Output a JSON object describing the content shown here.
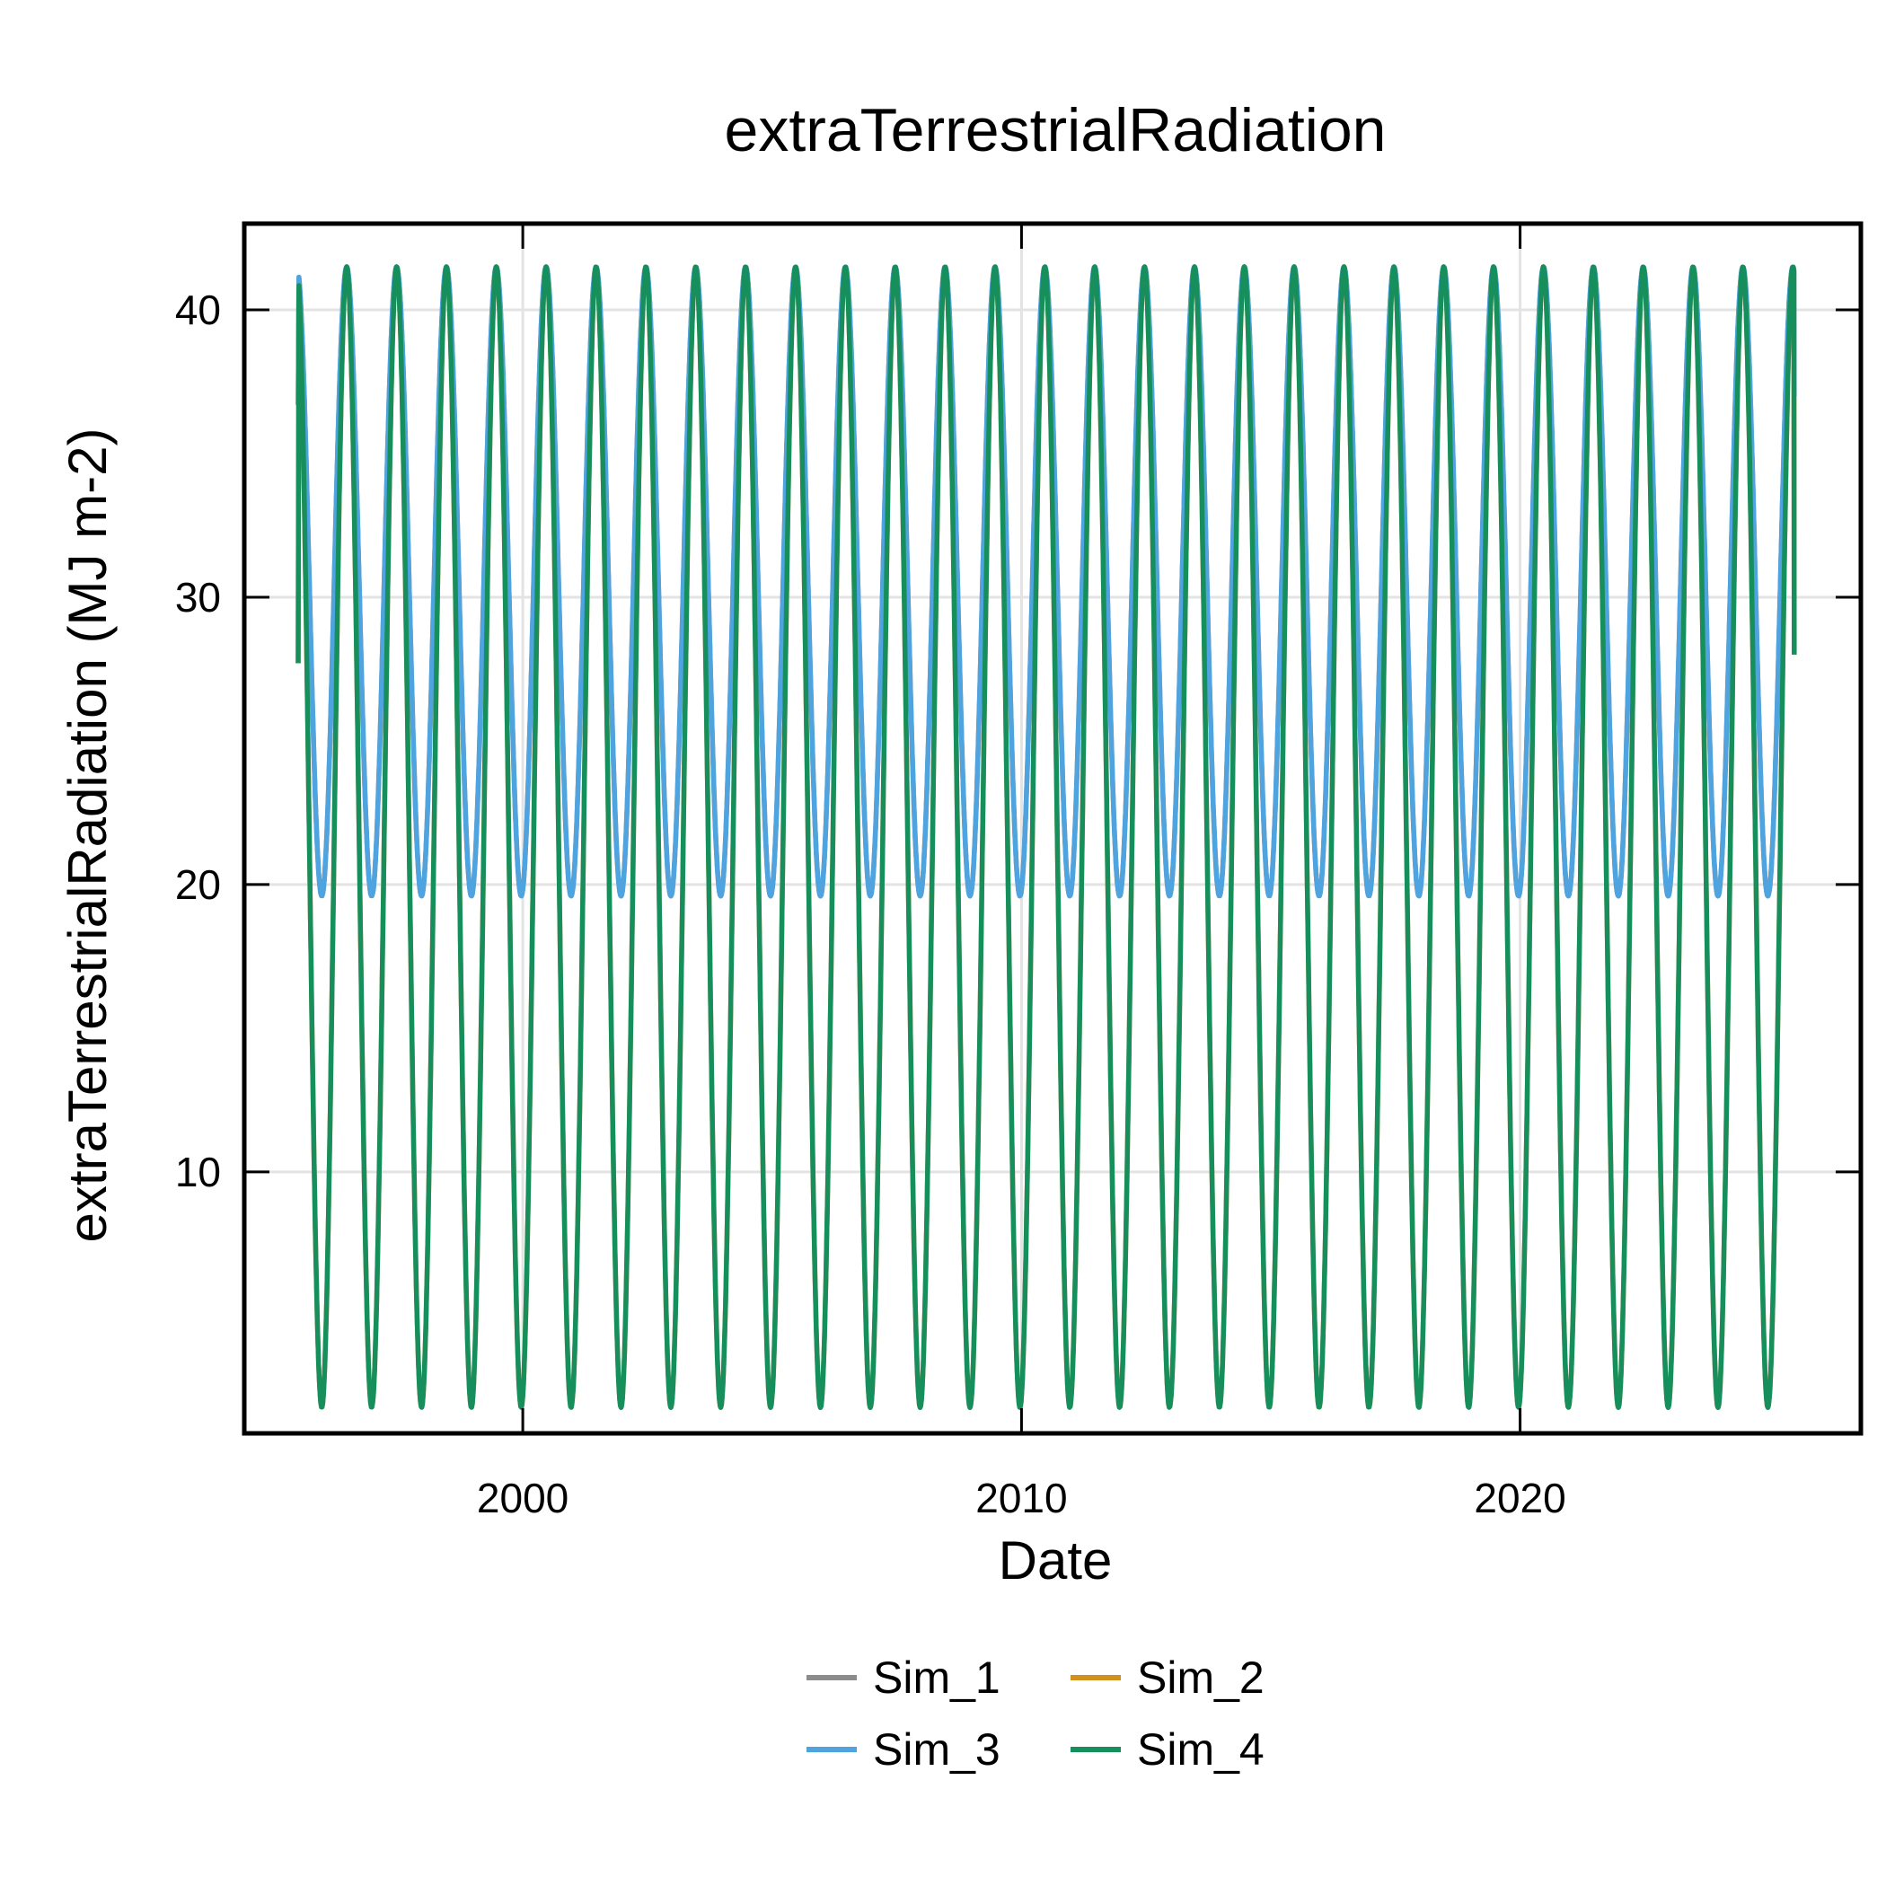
{
  "chart_data": {
    "type": "line",
    "title": "extraTerrestrialRadiation",
    "xlabel": "Date",
    "ylabel": "extraTerrestrialRadiation (MJ m-2)",
    "x_range": [
      "1994-06-01",
      "2026-11-01"
    ],
    "ylim": [
      0.9,
      43.0
    ],
    "x_ticks": [
      "2000",
      "2010",
      "2020"
    ],
    "y_ticks": [
      "10",
      "20",
      "30",
      "40"
    ],
    "grid": true,
    "legend_position": "bottom",
    "series": [
      {
        "name": "Sim_1",
        "color": "#8c8c8c",
        "start": "1995-07-01",
        "end": "2025-07-01",
        "min": 19.6,
        "max": 41.5,
        "peak_month": "June",
        "start_value": 36.7,
        "end_value": 37.0
      },
      {
        "name": "Sim_2",
        "color": "#d4901c",
        "start": "1995-07-01",
        "end": "2025-07-01",
        "min": 1.8,
        "max": 41.5,
        "peak_month": "June",
        "start_value": 27.7,
        "end_value": 28.0
      },
      {
        "name": "Sim_3",
        "color": "#4fa3df",
        "start": "1995-07-01",
        "end": "2025-07-01",
        "min": 19.6,
        "max": 41.5,
        "peak_month": "June",
        "start_value": 36.7,
        "end_value": 37.0
      },
      {
        "name": "Sim_4",
        "color": "#168f5d",
        "start": "1995-07-01",
        "end": "2025-07-01",
        "min": 1.8,
        "max": 41.5,
        "peak_month": "June",
        "start_value": 27.7,
        "end_value": 28.0
      }
    ]
  }
}
